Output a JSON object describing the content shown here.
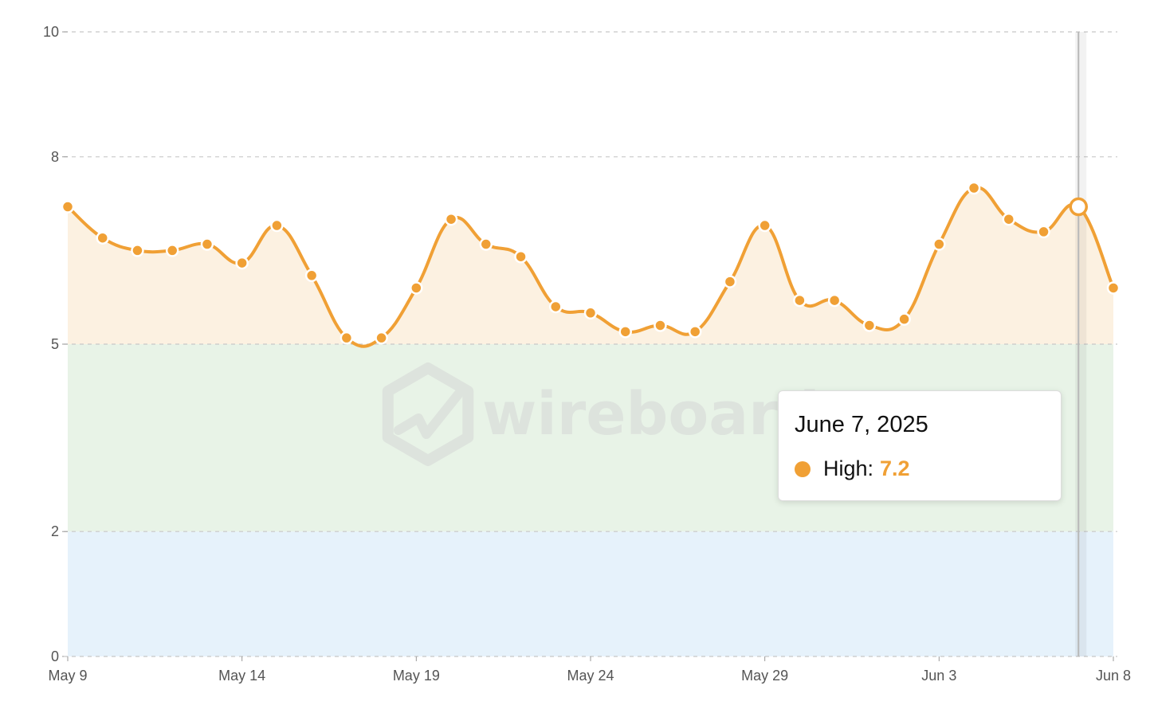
{
  "colors": {
    "line": "#F0A035",
    "band_high": "#FCF1E1",
    "band_mid": "#E8F3E7",
    "band_low": "#E6F2FB",
    "grid": "#c8c8c8",
    "watermark": "#DDE3DD"
  },
  "watermark_text": "wireboard",
  "tooltip": {
    "date": "June 7, 2025",
    "series_label": "High:",
    "value": "7.2"
  },
  "chart_data": {
    "type": "area",
    "x": [
      "May 9",
      "May 10",
      "May 11",
      "May 12",
      "May 13",
      "May 14",
      "May 15",
      "May 16",
      "May 17",
      "May 18",
      "May 19",
      "May 20",
      "May 21",
      "May 22",
      "May 23",
      "May 24",
      "May 25",
      "May 26",
      "May 27",
      "May 28",
      "May 29",
      "May 30",
      "May 31",
      "Jun 1",
      "Jun 2",
      "Jun 3",
      "Jun 4",
      "Jun 5",
      "Jun 6",
      "Jun 7",
      "Jun 8"
    ],
    "series": [
      {
        "name": "High",
        "values": [
          7.2,
          6.7,
          6.5,
          6.5,
          6.6,
          6.3,
          6.9,
          6.1,
          5.1,
          5.1,
          5.9,
          7.0,
          6.6,
          6.4,
          5.6,
          5.5,
          5.2,
          5.3,
          5.2,
          6.0,
          6.9,
          5.7,
          5.7,
          5.3,
          5.4,
          6.6,
          7.5,
          7.0,
          6.8,
          7.2,
          5.9
        ]
      }
    ],
    "x_tick_labels": [
      "May 9",
      "May 14",
      "May 19",
      "May 24",
      "May 29",
      "Jun 3",
      "Jun 8"
    ],
    "y_ticks": [
      0,
      2,
      5,
      8,
      10
    ],
    "ylim": [
      0,
      10
    ],
    "bands": [
      {
        "from": 0,
        "to": 2
      },
      {
        "from": 2,
        "to": 5
      },
      {
        "from": 5,
        "to": 10
      }
    ],
    "highlighted_x": "Jun 7",
    "grid": true
  }
}
